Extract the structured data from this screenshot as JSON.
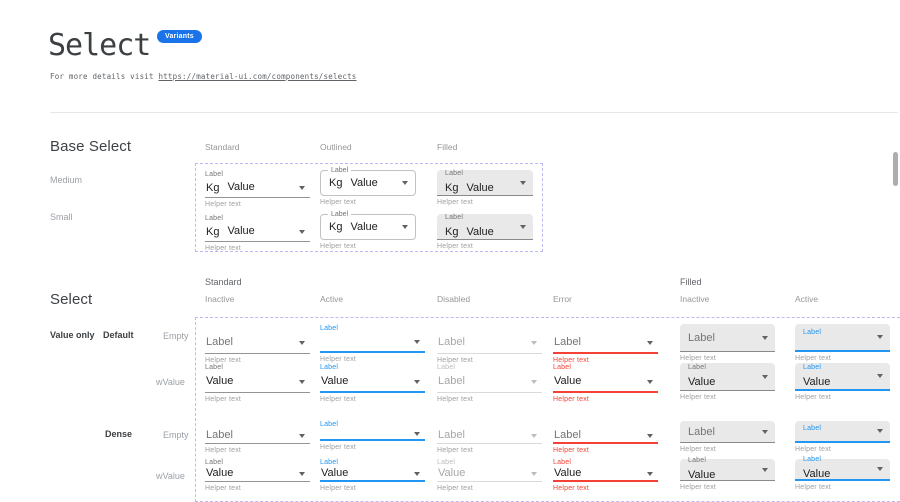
{
  "colors": {
    "primary": "#2196f3",
    "error": "#f44336",
    "badge_bg": "#1a73e8",
    "dashed": "#b9bbf2",
    "underline": "#949494",
    "underline_disabled": "#dadada",
    "text": "#212121",
    "label_gray": "#757575",
    "disabled_text": "#a8a8a8",
    "helper": "#9e9e9e",
    "filled_bg": "#e9e9e9",
    "filled_border": "#8a8a8a",
    "caret": "#5f6368",
    "caret_disabled": "#bcbcbc"
  },
  "header": {
    "title": "Select",
    "badge": "Variants",
    "subtitle_prefix": "For more details visit ",
    "subtitle_link": "https://material-ui.com/components/selects"
  },
  "base_select": {
    "heading": "Base Select",
    "columns": [
      "Standard",
      "Outlined",
      "Filled"
    ],
    "rows": [
      "Medium",
      "Small"
    ],
    "field": {
      "label": "Label",
      "adornment": "Kg",
      "value": "Value",
      "helper": "Helper text"
    }
  },
  "select_matrix": {
    "heading": "Select",
    "group_headers": [
      "Standard",
      "Filled"
    ],
    "state_headers": [
      "Inactive",
      "Active",
      "Disabled",
      "Error",
      "Inactive",
      "Active"
    ],
    "row_group": "Value only",
    "size_labels": [
      "Default",
      "Dense"
    ],
    "kind_labels": [
      "Empty",
      "wValue"
    ],
    "helper": "Helper text",
    "rows": [
      {
        "size": "Default",
        "kind": "Empty",
        "cells": [
          {
            "variant": "standard",
            "state": "inactive",
            "label": "",
            "value": "Label",
            "placeholder": true
          },
          {
            "variant": "standard",
            "state": "active",
            "label": "Label",
            "value": "",
            "placeholder": false
          },
          {
            "variant": "standard",
            "state": "disabled",
            "label": "",
            "value": "Label",
            "placeholder": true
          },
          {
            "variant": "standard",
            "state": "error",
            "label": "",
            "value": "Label",
            "placeholder": true
          },
          {
            "variant": "filled",
            "state": "inactive",
            "label": "",
            "value": "Label",
            "placeholder": true
          },
          {
            "variant": "filled",
            "state": "active",
            "label": "Label",
            "value": "",
            "placeholder": false
          }
        ]
      },
      {
        "size": "Default",
        "kind": "wValue",
        "cells": [
          {
            "variant": "standard",
            "state": "inactive",
            "label": "Label",
            "value": "Value",
            "placeholder": false
          },
          {
            "variant": "standard",
            "state": "active",
            "label": "Label",
            "value": "Value",
            "placeholder": false
          },
          {
            "variant": "standard",
            "state": "disabled",
            "label": "Label",
            "value": "Label",
            "placeholder": false
          },
          {
            "variant": "standard",
            "state": "error",
            "label": "Label",
            "value": "Value",
            "placeholder": false
          },
          {
            "variant": "filled",
            "state": "inactive",
            "label": "Label",
            "value": "Value",
            "placeholder": false
          },
          {
            "variant": "filled",
            "state": "active",
            "label": "Label",
            "value": "Value",
            "placeholder": false
          }
        ]
      },
      {
        "size": "Dense",
        "kind": "Empty",
        "cells": [
          {
            "variant": "standard",
            "state": "inactive",
            "label": "",
            "value": "Label",
            "placeholder": true
          },
          {
            "variant": "standard",
            "state": "active",
            "label": "Label",
            "value": "",
            "placeholder": false
          },
          {
            "variant": "standard",
            "state": "disabled",
            "label": "",
            "value": "Label",
            "placeholder": true
          },
          {
            "variant": "standard",
            "state": "error",
            "label": "",
            "value": "Label",
            "placeholder": true
          },
          {
            "variant": "filled",
            "state": "inactive",
            "label": "",
            "value": "Label",
            "placeholder": true
          },
          {
            "variant": "filled",
            "state": "active",
            "label": "Label",
            "value": "",
            "placeholder": false
          }
        ]
      },
      {
        "size": "Dense",
        "kind": "wValue",
        "cells": [
          {
            "variant": "standard",
            "state": "inactive",
            "label": "Label",
            "value": "Value",
            "placeholder": false
          },
          {
            "variant": "standard",
            "state": "active",
            "label": "Label",
            "value": "Value",
            "placeholder": false
          },
          {
            "variant": "standard",
            "state": "disabled",
            "label": "Label",
            "value": "Value",
            "placeholder": false
          },
          {
            "variant": "standard",
            "state": "error",
            "label": "Label",
            "value": "Value",
            "placeholder": false
          },
          {
            "variant": "filled",
            "state": "inactive",
            "label": "Label",
            "value": "Value",
            "placeholder": false
          },
          {
            "variant": "filled",
            "state": "active",
            "label": "Label",
            "value": "Value",
            "placeholder": false
          }
        ]
      }
    ]
  }
}
